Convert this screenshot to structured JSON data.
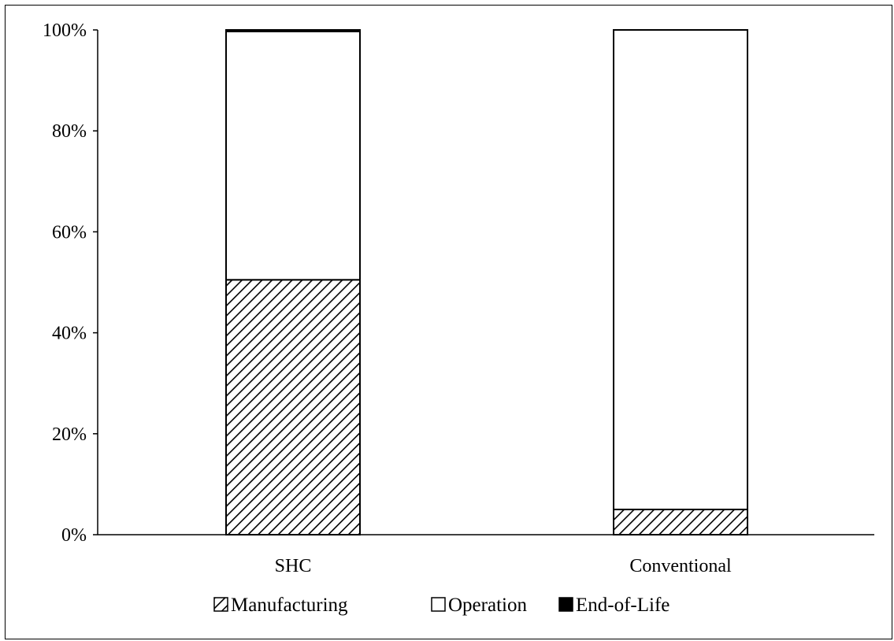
{
  "chart_data": {
    "type": "bar",
    "stacked": true,
    "percent": true,
    "categories": [
      "SHC",
      "Conventional"
    ],
    "series": [
      {
        "name": "Manufacturing",
        "values": [
          50.5,
          5
        ],
        "fill": "hatch",
        "color": "#000000"
      },
      {
        "name": "Operation",
        "values": [
          49.2,
          95
        ],
        "fill": "solid",
        "color": "#ffffff"
      },
      {
        "name": "End-of-Life",
        "values": [
          0.3,
          0
        ],
        "fill": "solid",
        "color": "#000000"
      }
    ],
    "y_ticks": [
      "0%",
      "20%",
      "40%",
      "60%",
      "80%",
      "100%"
    ],
    "ylim": [
      0,
      100
    ],
    "grid": false,
    "legend_position": "bottom"
  }
}
